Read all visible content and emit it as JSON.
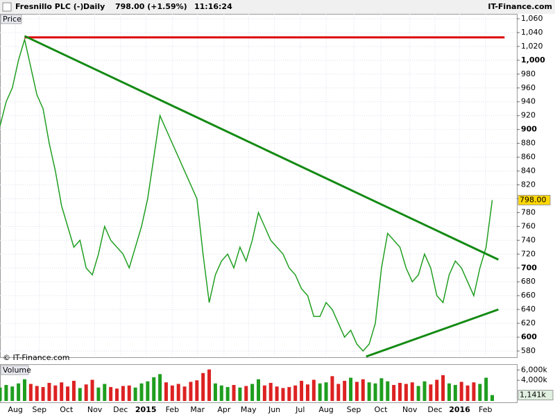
{
  "header": {
    "title": "Fresnillo PLC (-)",
    "period": "Daily",
    "quote": "798.00 (+1.59%)",
    "time": "11:16:24",
    "brand": "IT-Finance.com"
  },
  "chart_data": [
    {
      "type": "line",
      "panel_label": "Price",
      "footer": "© IT-Finance.com",
      "color": "#1f9e1f",
      "x": [
        0,
        1,
        2,
        3,
        4,
        5,
        6,
        7,
        8,
        9,
        10,
        11,
        12,
        13,
        14,
        15,
        16,
        17,
        18,
        19,
        20,
        21,
        22,
        23,
        24,
        25,
        26,
        27,
        28,
        29,
        30,
        31,
        32,
        33,
        34,
        35,
        36,
        37,
        38,
        39,
        40,
        41,
        42,
        43,
        44,
        45,
        46,
        47,
        48,
        49,
        50,
        51,
        52,
        53,
        54,
        55,
        56,
        57,
        58,
        59,
        60,
        61,
        62,
        63,
        64,
        65,
        66,
        67,
        68,
        69,
        70,
        71,
        72,
        73,
        74,
        75,
        76,
        77,
        78,
        79,
        80
      ],
      "series": [
        {
          "name": "Price",
          "color": "#1f9e1f",
          "values": [
            905,
            940,
            960,
            1000,
            1030,
            990,
            950,
            930,
            880,
            840,
            790,
            760,
            730,
            740,
            700,
            690,
            720,
            760,
            740,
            730,
            720,
            700,
            730,
            760,
            800,
            860,
            920,
            900,
            880,
            860,
            840,
            820,
            800,
            720,
            650,
            690,
            710,
            720,
            700,
            730,
            710,
            740,
            780,
            760,
            740,
            730,
            720,
            700,
            690,
            670,
            660,
            630,
            630,
            650,
            640,
            620,
            600,
            610,
            590,
            580,
            590,
            620,
            700,
            750,
            740,
            730,
            700,
            680,
            690,
            720,
            700,
            660,
            650,
            690,
            710,
            700,
            680,
            660,
            700,
            730,
            798
          ]
        }
      ],
      "last_value": {
        "value": 798,
        "label": "798.00"
      },
      "trendlines": [
        {
          "color": "#dd0000",
          "points": [
            [
              4,
              1033
            ],
            [
              82,
              1033
            ]
          ]
        },
        {
          "color": "#138a13",
          "points": [
            [
              4,
              1035
            ],
            [
              81,
              712
            ]
          ]
        },
        {
          "color": "#138a13",
          "points": [
            [
              59.5,
              572
            ],
            [
              81,
              640
            ]
          ]
        }
      ],
      "xlim": [
        0,
        84
      ],
      "ylim": [
        571,
        1067
      ],
      "xticks": [
        {
          "value": 2.5,
          "label": "Aug"
        },
        {
          "value": 6.4,
          "label": "Sep"
        },
        {
          "value": 10.8,
          "label": "Oct"
        },
        {
          "value": 15.4,
          "label": "Nov"
        },
        {
          "value": 19.6,
          "label": "Dec"
        },
        {
          "value": 23.7,
          "label": "2015"
        },
        {
          "value": 28,
          "label": "Feb"
        },
        {
          "value": 32.1,
          "label": "Mar"
        },
        {
          "value": 36.4,
          "label": "Apr"
        },
        {
          "value": 40.4,
          "label": "May"
        },
        {
          "value": 44.6,
          "label": "Jun"
        },
        {
          "value": 48.8,
          "label": "Jul"
        },
        {
          "value": 53,
          "label": "Aug"
        },
        {
          "value": 57.5,
          "label": "Sep"
        },
        {
          "value": 61.9,
          "label": "Oct"
        },
        {
          "value": 66.6,
          "label": "Nov"
        },
        {
          "value": 70.7,
          "label": "Dec"
        },
        {
          "value": 74.7,
          "label": "2016"
        },
        {
          "value": 78.9,
          "label": "Feb"
        }
      ],
      "yticks": [
        580,
        600,
        620,
        640,
        660,
        680,
        700,
        720,
        740,
        760,
        780,
        800,
        820,
        840,
        860,
        880,
        900,
        920,
        940,
        960,
        980,
        {
          "value": 1000,
          "label": "1,000"
        },
        {
          "value": 1020,
          "label": "1,020"
        },
        {
          "value": 1040,
          "label": "1,040"
        },
        {
          "value": 1060,
          "label": "1,060"
        }
      ],
      "grid": true
    },
    {
      "type": "bar",
      "panel_label": "Volume",
      "up_color": "#1f9e1f",
      "down_color": "#dd2222",
      "values": [
        2600,
        3100,
        2800,
        3400,
        4200,
        3300,
        2900,
        2700,
        3500,
        3000,
        3600,
        2800,
        3900,
        2500,
        3200,
        4100,
        2600,
        3300,
        2700,
        2400,
        2900,
        3000,
        2600,
        3400,
        3800,
        4600,
        5200,
        3600,
        3000,
        3300,
        2800,
        3700,
        4000,
        5400,
        6100,
        3400,
        3000,
        2700,
        3100,
        2600,
        2900,
        3300,
        4200,
        3000,
        3500,
        2800,
        2500,
        2700,
        3000,
        3900,
        3200,
        4100,
        3400,
        3600,
        4800,
        3300,
        3900,
        4500,
        3700,
        4200,
        3600,
        3400,
        4400,
        3800,
        3100,
        3500,
        3300,
        3600,
        2900,
        3800,
        3200,
        4100,
        5000,
        3400,
        3100,
        3700,
        3000,
        3600,
        3300,
        4500,
        1141
      ],
      "last_value": {
        "value": 1141,
        "label": "1,141k"
      },
      "ylim": [
        0,
        6850
      ],
      "yticks": [
        {
          "value": 4000,
          "label": "4,000k"
        },
        {
          "value": 6000,
          "label": "6,000k"
        }
      ]
    }
  ]
}
